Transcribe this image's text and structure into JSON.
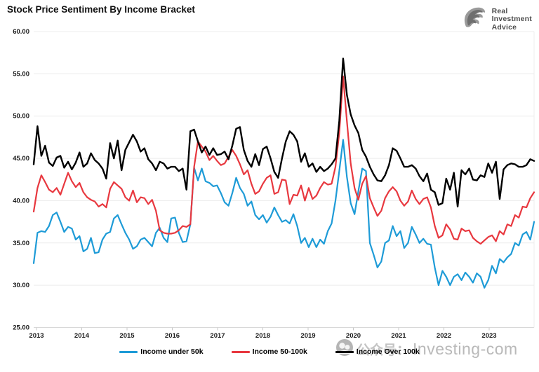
{
  "title": "Stock Price Sentiment By Income Bracket",
  "logo": {
    "icon": "eagle-icon",
    "line1": "Real",
    "line2": "Investment",
    "line3": "Advice"
  },
  "watermark": {
    "icon": "wechat-badge-icon",
    "text_cjk": "公众号：",
    "text_latin": "Investing-com"
  },
  "chart_data": {
    "type": "line",
    "title": "Stock Price Sentiment By Income Bracket",
    "frequency": "monthly",
    "x_start_year": 2013,
    "x_tick_labels": [
      "2013",
      "2014",
      "2015",
      "2016",
      "2017",
      "2018",
      "2019",
      "2020",
      "2021",
      "2022",
      "2023"
    ],
    "y_ticks": [
      60,
      55,
      50,
      45,
      40,
      35,
      30,
      25
    ],
    "y_tick_labels": [
      "60.00",
      "55.00",
      "50.00",
      "45.00",
      "40.00",
      "35.00",
      "30.00",
      "25.00"
    ],
    "ylim": [
      25,
      60
    ],
    "grid": "horizontal",
    "legend_position": "bottom",
    "colors": {
      "under50k": "#1E9BD7",
      "mid50to100k": "#E8383F",
      "over100k": "#000000"
    },
    "series": [
      {
        "name": "Income under 50k",
        "color": "#1E9BD7",
        "values": [
          32.6,
          36.2,
          36.4,
          36.3,
          37.0,
          38.3,
          38.6,
          37.5,
          36.3,
          36.9,
          36.7,
          35.4,
          35.8,
          34.0,
          34.3,
          35.6,
          33.8,
          33.9,
          35.4,
          36.1,
          36.3,
          37.9,
          38.3,
          37.2,
          36.2,
          35.4,
          34.3,
          34.6,
          35.4,
          35.6,
          35.1,
          34.6,
          36.2,
          36.8,
          35.6,
          35.1,
          37.9,
          38.0,
          36.2,
          35.1,
          35.2,
          37.2,
          43.9,
          42.4,
          43.8,
          42.3,
          42.1,
          41.7,
          41.8,
          40.9,
          39.8,
          39.4,
          40.9,
          42.7,
          41.5,
          40.8,
          39.4,
          39.9,
          38.3,
          37.8,
          38.3,
          37.4,
          38.1,
          39.2,
          38.3,
          37.5,
          37.7,
          37.3,
          38.4,
          37.0,
          35.0,
          35.6,
          34.5,
          35.5,
          34.5,
          35.4,
          34.9,
          36.4,
          37.3,
          40.0,
          43.5,
          47.2,
          42.8,
          39.7,
          38.4,
          41.1,
          43.8,
          43.5,
          35.0,
          33.6,
          32.1,
          32.8,
          35.0,
          35.3,
          37.0,
          35.8,
          36.4,
          34.4,
          35.0,
          36.9,
          36.0,
          35.0,
          35.5,
          34.9,
          34.8,
          32.1,
          30.0,
          31.7,
          31.0,
          30.0,
          31.0,
          31.3,
          30.6,
          31.5,
          31.0,
          30.3,
          31.4,
          31.0,
          29.7,
          30.6,
          32.3,
          31.4,
          33.1,
          32.7,
          33.3,
          33.7,
          35.0,
          34.7,
          36.0,
          36.3,
          35.4,
          37.5
        ]
      },
      {
        "name": "Income 50-100k",
        "color": "#E8383F",
        "values": [
          38.7,
          41.5,
          43.0,
          42.2,
          41.3,
          41.0,
          41.5,
          40.7,
          42.0,
          43.3,
          42.3,
          41.6,
          42.1,
          41.0,
          40.4,
          40.1,
          39.9,
          39.3,
          39.6,
          39.2,
          41.4,
          42.2,
          41.8,
          41.4,
          40.4,
          40.0,
          41.2,
          39.8,
          40.4,
          40.3,
          39.6,
          40.1,
          38.8,
          36.5,
          36.2,
          36.1,
          36.1,
          36.2,
          36.5,
          37.0,
          36.9,
          37.2,
          44.0,
          47.0,
          46.4,
          45.8,
          44.8,
          45.3,
          44.7,
          44.2,
          44.4,
          45.2,
          46.0,
          45.3,
          44.3,
          43.1,
          43.6,
          42.0,
          40.8,
          41.1,
          42.0,
          42.7,
          43.0,
          40.8,
          41.0,
          42.5,
          42.4,
          39.6,
          40.7,
          40.6,
          41.8,
          40.0,
          41.5,
          40.2,
          40.6,
          41.5,
          42.2,
          41.9,
          42.0,
          44.0,
          48.0,
          54.7,
          49.4,
          44.4,
          41.5,
          40.1,
          42.0,
          42.9,
          40.3,
          39.2,
          38.2,
          38.8,
          40.3,
          41.1,
          41.6,
          41.1,
          40.0,
          39.4,
          39.9,
          41.2,
          40.2,
          39.6,
          40.2,
          40.4,
          39.2,
          37.0,
          35.6,
          35.9,
          37.2,
          36.6,
          35.5,
          35.4,
          36.7,
          36.4,
          36.5,
          35.6,
          35.2,
          34.9,
          35.3,
          35.7,
          35.9,
          35.2,
          36.4,
          36.0,
          37.2,
          37.0,
          38.3,
          38.0,
          39.3,
          39.2,
          40.3,
          41.0
        ]
      },
      {
        "name": "Income Over 100k",
        "color": "#000000",
        "values": [
          44.3,
          48.8,
          45.3,
          46.5,
          44.5,
          44.1,
          45.1,
          45.3,
          43.9,
          44.6,
          43.7,
          44.5,
          45.7,
          44.0,
          44.4,
          45.6,
          44.8,
          44.4,
          43.8,
          42.6,
          46.8,
          45.0,
          47.1,
          43.6,
          46.0,
          46.9,
          47.8,
          47.0,
          45.8,
          46.2,
          44.9,
          44.4,
          43.6,
          44.6,
          44.4,
          43.8,
          44.0,
          44.0,
          43.5,
          43.8,
          41.3,
          48.2,
          48.4,
          47.0,
          45.7,
          46.4,
          45.4,
          46.2,
          45.4,
          45.5,
          45.8,
          44.9,
          46.5,
          48.5,
          48.7,
          46.0,
          44.7,
          44.0,
          45.5,
          44.2,
          46.1,
          46.4,
          45.0,
          43.4,
          42.7,
          45.0,
          47.0,
          48.2,
          47.8,
          47.0,
          44.6,
          45.6,
          44.0,
          44.4,
          43.4,
          44.0,
          43.5,
          43.8,
          44.3,
          45.0,
          49.4,
          56.8,
          52.5,
          50.2,
          48.9,
          48.0,
          46.0,
          45.2,
          44.0,
          43.1,
          42.4,
          42.3,
          43.0,
          44.2,
          46.2,
          45.9,
          45.0,
          44.0,
          44.0,
          44.2,
          43.8,
          42.9,
          42.3,
          43.2,
          41.3,
          41.0,
          39.5,
          39.7,
          42.6,
          41.3,
          43.3,
          39.3,
          43.6,
          43.1,
          43.8,
          42.5,
          42.4,
          43.0,
          42.8,
          44.4,
          43.3,
          44.6,
          40.2,
          43.7,
          44.2,
          44.4,
          44.3,
          44.0,
          44.0,
          44.2,
          44.9,
          44.7
        ]
      }
    ]
  }
}
